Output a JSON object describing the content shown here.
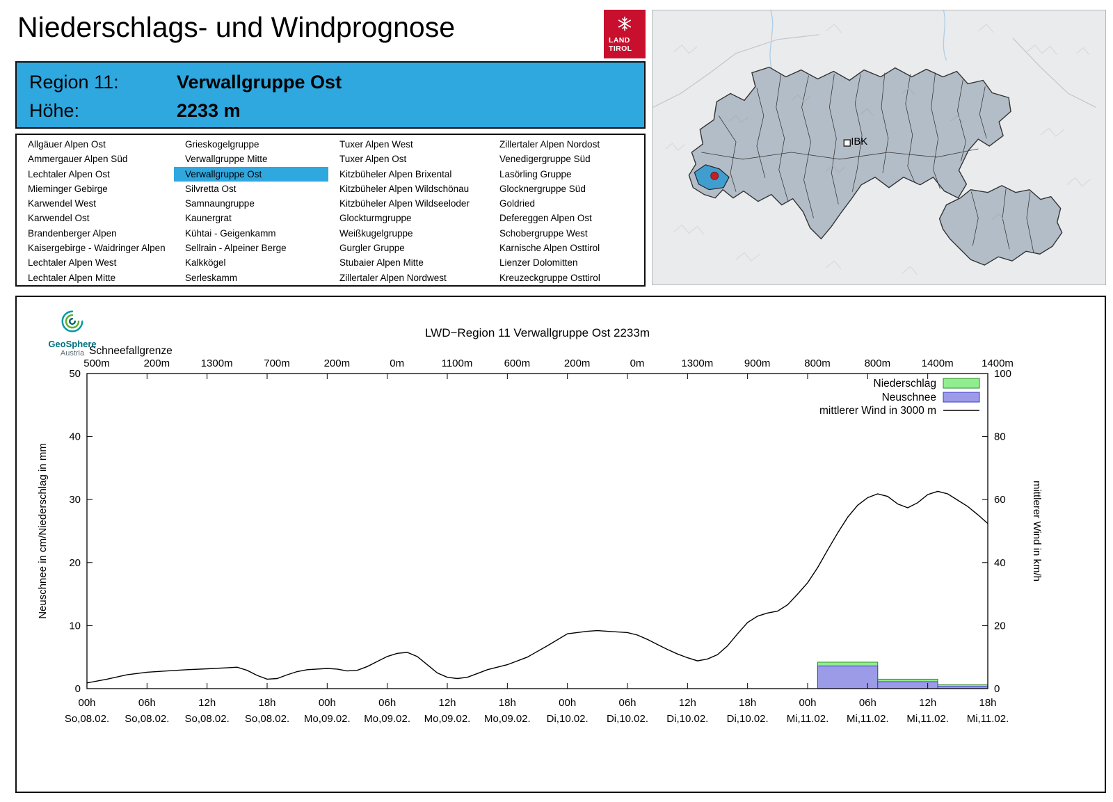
{
  "page": {
    "title": "Niederschlags- und Windprognose"
  },
  "land_tirol_logo": {
    "line1": "LAND",
    "line2": "TIROL",
    "color": "#c8102e"
  },
  "map": {
    "ibk_label": "IBK"
  },
  "header": {
    "region_label": "Region 11:",
    "region_value": "Verwallgruppe Ost",
    "altitude_label": "Höhe:",
    "altitude_value": "2233 m",
    "background": "#2fa8e0"
  },
  "regions": {
    "selected": "Verwallgruppe Ost",
    "highlight_color": "#2fa8e0",
    "columns": [
      [
        "Allgäuer Alpen Ost",
        "Ammergauer Alpen Süd",
        "Lechtaler Alpen Ost",
        "Mieminger Gebirge",
        "Karwendel West",
        "Karwendel Ost",
        "Brandenberger Alpen",
        "Kaisergebirge - Waidringer Alpen",
        "Lechtaler Alpen West",
        "Lechtaler Alpen Mitte"
      ],
      [
        "Grieskogelgruppe",
        "Verwallgruppe Mitte",
        "Verwallgruppe Ost",
        "Silvretta Ost",
        "Samnaungruppe",
        "Kaunergrat",
        "Kühtai - Geigenkamm",
        "Sellrain - Alpeiner Berge",
        "Kalkkögel",
        "Serleskamm"
      ],
      [
        "Tuxer Alpen West",
        "Tuxer Alpen Ost",
        "Kitzbüheler Alpen Brixental",
        "Kitzbüheler Alpen Wildschönau",
        "Kitzbüheler Alpen Wildseeloder",
        "Glockturmgruppe",
        "Weißkugelgruppe",
        "Gurgler Gruppe",
        "Stubaier Alpen Mitte",
        "Zillertaler Alpen Nordwest"
      ],
      [
        "Zillertaler Alpen Nordost",
        "Venedigergruppe Süd",
        "Lasörling Gruppe",
        "Glocknergruppe Süd",
        "Goldried",
        "Defereggen Alpen Ost",
        "Schobergruppe West",
        "Karnische Alpen Osttirol",
        "Lienzer Dolomitten",
        "Kreuzeckgruppe Osttirol"
      ]
    ]
  },
  "geosphere": {
    "name": "GeoSphere",
    "sub": "Austria"
  },
  "chart_data": {
    "type": "line+bar",
    "title": "LWD−Region 11 Verwallgruppe Ost 2233m",
    "snowline_label": "Schneefallgrenze",
    "snowline_values": [
      "500m",
      "200m",
      "1300m",
      "700m",
      "200m",
      "0m",
      "1100m",
      "600m",
      "200m",
      "0m",
      "1300m",
      "900m",
      "800m",
      "800m",
      "1400m",
      "1400m"
    ],
    "ylabel_left": "Neuschnee in cm/Niederschlag in mm",
    "ylabel_right": "mittlerer Wind in km/h",
    "ylim_left": [
      0,
      50
    ],
    "ylim_right": [
      0,
      100
    ],
    "yticks_left": [
      0,
      10,
      20,
      30,
      40,
      50
    ],
    "yticks_right": [
      0,
      20,
      40,
      60,
      80,
      100
    ],
    "x_hours_max": 90,
    "x_tick_step_hours": 6,
    "x_ticks": [
      {
        "hour": "00h",
        "date": "So,08.02."
      },
      {
        "hour": "06h",
        "date": "So,08.02."
      },
      {
        "hour": "12h",
        "date": "So,08.02."
      },
      {
        "hour": "18h",
        "date": "So,08.02."
      },
      {
        "hour": "00h",
        "date": "Mo,09.02."
      },
      {
        "hour": "06h",
        "date": "Mo,09.02."
      },
      {
        "hour": "12h",
        "date": "Mo,09.02."
      },
      {
        "hour": "18h",
        "date": "Mo,09.02."
      },
      {
        "hour": "00h",
        "date": "Di,10.02."
      },
      {
        "hour": "06h",
        "date": "Di,10.02."
      },
      {
        "hour": "12h",
        "date": "Di,10.02."
      },
      {
        "hour": "18h",
        "date": "Di,10.02."
      },
      {
        "hour": "00h",
        "date": "Mi,11.02."
      },
      {
        "hour": "06h",
        "date": "Mi,11.02."
      },
      {
        "hour": "12h",
        "date": "Mi,11.02."
      },
      {
        "hour": "18h",
        "date": "Mi,11.02."
      }
    ],
    "legend": [
      {
        "label": "Niederschlag",
        "swatch": "bar",
        "fill": "#90ee90",
        "stroke": "#2e8b22"
      },
      {
        "label": "Neuschnee",
        "swatch": "bar",
        "fill": "#9b9be8",
        "stroke": "#3a3acc"
      },
      {
        "label": "mittlerer Wind in 3000 m",
        "swatch": "line",
        "stroke": "#000000"
      }
    ],
    "wind_kmh": [
      [
        0,
        1.8
      ],
      [
        2,
        3
      ],
      [
        4,
        4.4
      ],
      [
        6,
        5.2
      ],
      [
        8,
        5.6
      ],
      [
        10,
        6
      ],
      [
        12,
        6.3
      ],
      [
        14,
        6.6
      ],
      [
        15,
        6.8
      ],
      [
        16,
        5.8
      ],
      [
        17,
        4.2
      ],
      [
        18,
        3
      ],
      [
        19,
        3.2
      ],
      [
        20,
        4.4
      ],
      [
        21,
        5.4
      ],
      [
        22,
        6
      ],
      [
        24,
        6.4
      ],
      [
        25,
        6.2
      ],
      [
        26,
        5.6
      ],
      [
        27,
        5.8
      ],
      [
        28,
        7
      ],
      [
        29,
        8.6
      ],
      [
        30,
        10.2
      ],
      [
        31,
        11.2
      ],
      [
        32,
        11.5
      ],
      [
        33,
        10.2
      ],
      [
        34,
        7.6
      ],
      [
        35,
        5
      ],
      [
        36,
        3.6
      ],
      [
        37,
        3.2
      ],
      [
        38,
        3.6
      ],
      [
        39,
        4.8
      ],
      [
        40,
        6
      ],
      [
        42,
        7.6
      ],
      [
        44,
        10
      ],
      [
        46,
        13.6
      ],
      [
        48,
        17.4
      ],
      [
        50,
        18.2
      ],
      [
        51,
        18.4
      ],
      [
        52,
        18.2
      ],
      [
        54,
        17.8
      ],
      [
        55,
        17
      ],
      [
        56,
        15.6
      ],
      [
        57,
        14
      ],
      [
        58,
        12.4
      ],
      [
        59,
        11
      ],
      [
        60,
        9.8
      ],
      [
        61,
        8.8
      ],
      [
        62,
        9.4
      ],
      [
        63,
        10.8
      ],
      [
        64,
        13.6
      ],
      [
        65,
        17.4
      ],
      [
        66,
        21
      ],
      [
        67,
        23
      ],
      [
        68,
        24
      ],
      [
        69,
        24.6
      ],
      [
        70,
        26.6
      ],
      [
        71,
        30
      ],
      [
        72,
        33.6
      ],
      [
        73,
        38.4
      ],
      [
        74,
        44
      ],
      [
        75,
        49.4
      ],
      [
        76,
        54.4
      ],
      [
        77,
        58.2
      ],
      [
        78,
        60.6
      ],
      [
        79,
        61.8
      ],
      [
        80,
        61
      ],
      [
        81,
        58.6
      ],
      [
        82,
        57.4
      ],
      [
        83,
        59
      ],
      [
        84,
        61.6
      ],
      [
        85,
        62.6
      ],
      [
        86,
        61.8
      ],
      [
        87,
        59.8
      ],
      [
        88,
        57.8
      ],
      [
        89,
        55.2
      ],
      [
        90,
        52.4
      ]
    ],
    "bars": [
      {
        "from_hour": 73,
        "to_hour": 79,
        "niederschlag_mm": 4.2,
        "neuschnee_cm": 3.6
      },
      {
        "from_hour": 79,
        "to_hour": 85,
        "niederschlag_mm": 1.5,
        "neuschnee_cm": 1.1
      },
      {
        "from_hour": 85,
        "to_hour": 90,
        "niederschlag_mm": 0.6,
        "neuschnee_cm": 0.35
      }
    ],
    "colors": {
      "niederschlag_fill": "#90ee90",
      "niederschlag_stroke": "#2e8b22",
      "neuschnee_fill": "#9b9be8",
      "neuschnee_stroke": "#3a3acc",
      "wind_line": "#000000"
    }
  }
}
